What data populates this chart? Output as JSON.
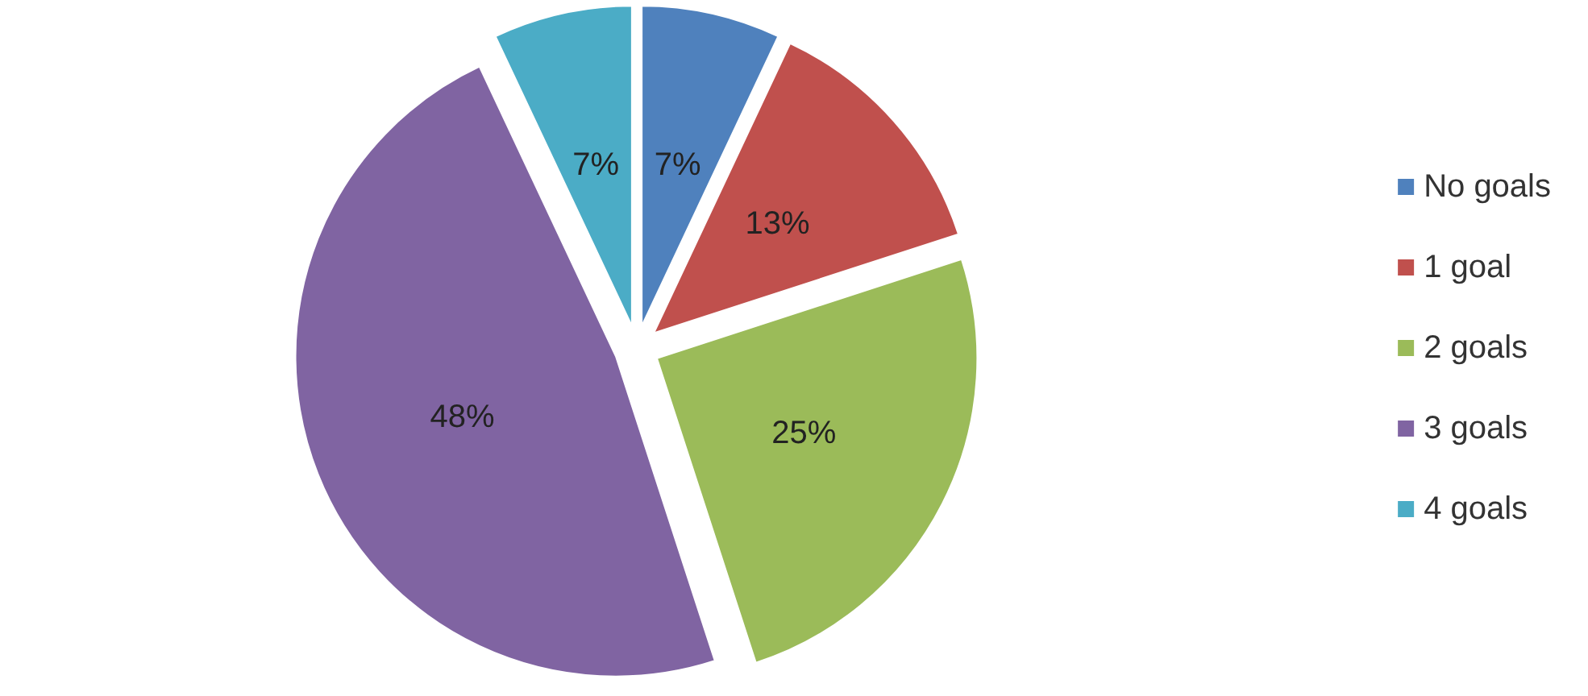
{
  "chart_data": {
    "type": "pie",
    "categories": [
      "No goals",
      "1 goal",
      "2 goals",
      "3 goals",
      "4 goals"
    ],
    "values": [
      7,
      13,
      25,
      48,
      7
    ],
    "colors": [
      "#4f81bd",
      "#c0504d",
      "#9bbb59",
      "#8064a2",
      "#4bacc6"
    ],
    "value_labels": [
      "7%",
      "13%",
      "25%",
      "48%",
      "7%"
    ],
    "legend": "right"
  }
}
